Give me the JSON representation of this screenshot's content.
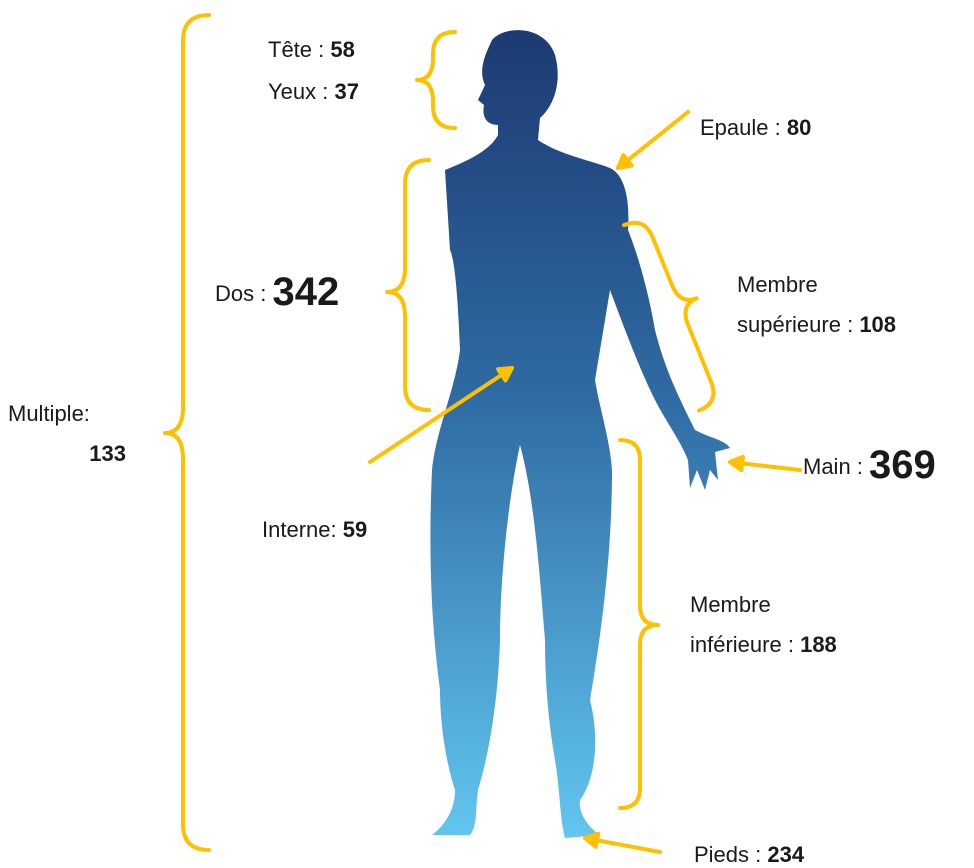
{
  "annotations": [
    {
      "label": "Tête :",
      "value": 58
    },
    {
      "label": "Yeux :",
      "value": 37
    },
    {
      "label": "Epaule :",
      "value": 80
    },
    {
      "label": "Dos :",
      "value": 342
    },
    {
      "lines": [
        "Membre",
        "supérieure :"
      ],
      "value": 108
    },
    {
      "label": "Main :",
      "value": 369
    },
    {
      "label": "Multiple:",
      "value": 133
    },
    {
      "label": "Interne:",
      "value": 59
    },
    {
      "lines": [
        "Membre",
        "inférieure :"
      ],
      "value": 188
    },
    {
      "label": "Pieds :",
      "value": 234
    }
  ]
}
